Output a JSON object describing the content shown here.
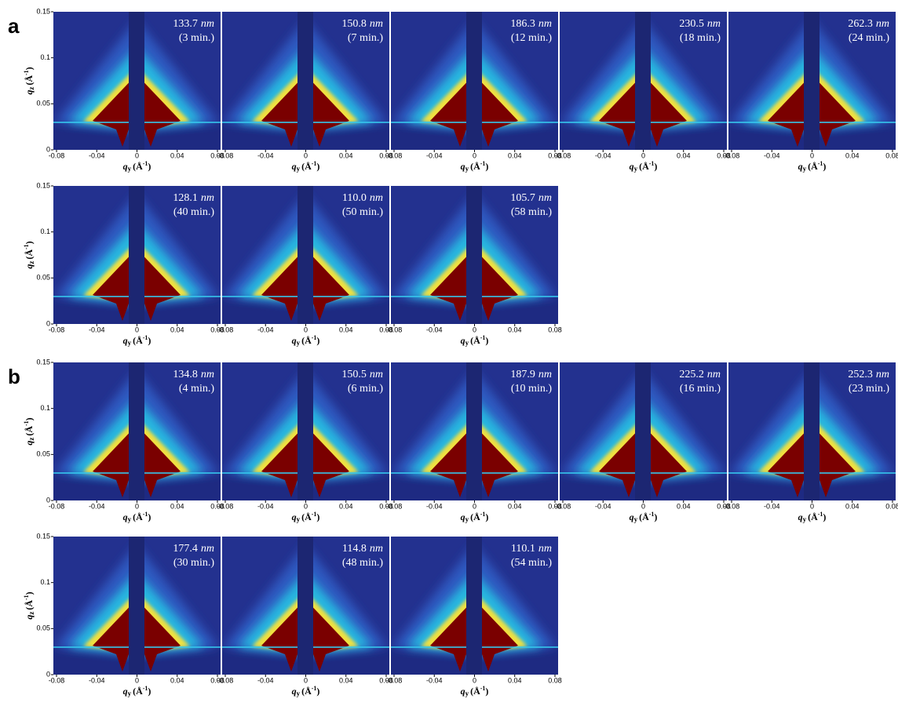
{
  "panels": [
    {
      "label": "a",
      "unit": "nm",
      "images": [
        {
          "thickness": "133.7",
          "time": "(3 min.)"
        },
        {
          "thickness": "150.8",
          "time": "(7 min.)"
        },
        {
          "thickness": "186.3",
          "time": "(12 min.)"
        },
        {
          "thickness": "230.5",
          "time": "(18 min.)"
        },
        {
          "thickness": "262.3",
          "time": "(24 min.)"
        },
        {
          "thickness": "128.1",
          "time": "(40 min.)"
        },
        {
          "thickness": "110.0",
          "time": "(50 min.)"
        },
        {
          "thickness": "105.7",
          "time": "(58 min.)"
        }
      ]
    },
    {
      "label": "b",
      "unit": "nm",
      "images": [
        {
          "thickness": "134.8",
          "time": "(4 min.)"
        },
        {
          "thickness": "150.5",
          "time": "(6 min.)"
        },
        {
          "thickness": "187.9",
          "time": "(10 min.)"
        },
        {
          "thickness": "225.2",
          "time": "(16 min.)"
        },
        {
          "thickness": "252.3",
          "time": "(23 min.)"
        },
        {
          "thickness": "177.4",
          "time": "(30 min.)"
        },
        {
          "thickness": "114.8",
          "time": "(48 min.)"
        },
        {
          "thickness": "110.1",
          "time": "(54 min.)"
        }
      ]
    }
  ],
  "axes": {
    "xticks": [
      -0.08,
      -0.04,
      0,
      0.04,
      0.08
    ],
    "yticks": [
      0,
      0.05,
      0.1,
      0.15
    ],
    "xlabel": {
      "symbol": "q",
      "subscript": "y",
      "unit": "(Å",
      "exponent": "-1",
      "close": ")"
    },
    "ylabel": {
      "symbol": "q",
      "subscript": "z",
      "unit": "(Å",
      "exponent": "-1",
      "close": ")"
    }
  }
}
